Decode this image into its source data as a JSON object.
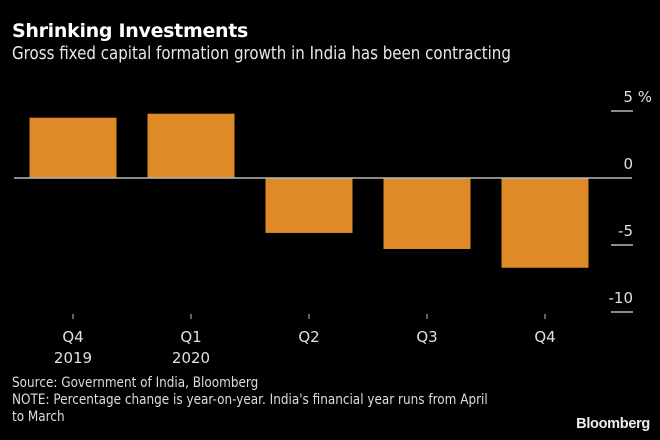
{
  "header": {
    "title": "Shrinking Investments",
    "subtitle": "Gross fixed capital formation growth in India has been contracting"
  },
  "chart_data": {
    "type": "bar",
    "title": "Shrinking Investments",
    "subtitle": "Gross fixed capital formation growth in India has been contracting",
    "categories": [
      "Q4 2019",
      "Q1 2020",
      "Q2",
      "Q3",
      "Q4"
    ],
    "category_labels": [
      [
        "Q4",
        "2019"
      ],
      [
        "Q1",
        "2020"
      ],
      [
        "Q2",
        ""
      ],
      [
        "Q3",
        ""
      ],
      [
        "Q4",
        ""
      ]
    ],
    "values": [
      4.5,
      4.8,
      -4.1,
      -5.3,
      -6.7
    ],
    "ylabel": "%",
    "ylim": [
      -10,
      5
    ],
    "yticks": [
      5,
      0,
      -5,
      -10
    ],
    "ytick_labels": [
      "5 %",
      "0",
      "-5",
      "-10"
    ],
    "y_axis_position": "right",
    "bar_color": "#dd8a27",
    "zero_line_color": "#b8b8b8",
    "grid": false,
    "legend": "none"
  },
  "footer": {
    "source": "Source: Government of India, Bloomberg",
    "note_line1": "NOTE: Percentage change is year-on-year. India's financial year runs from April",
    "note_line2": "to March",
    "logo": "Bloomberg"
  }
}
